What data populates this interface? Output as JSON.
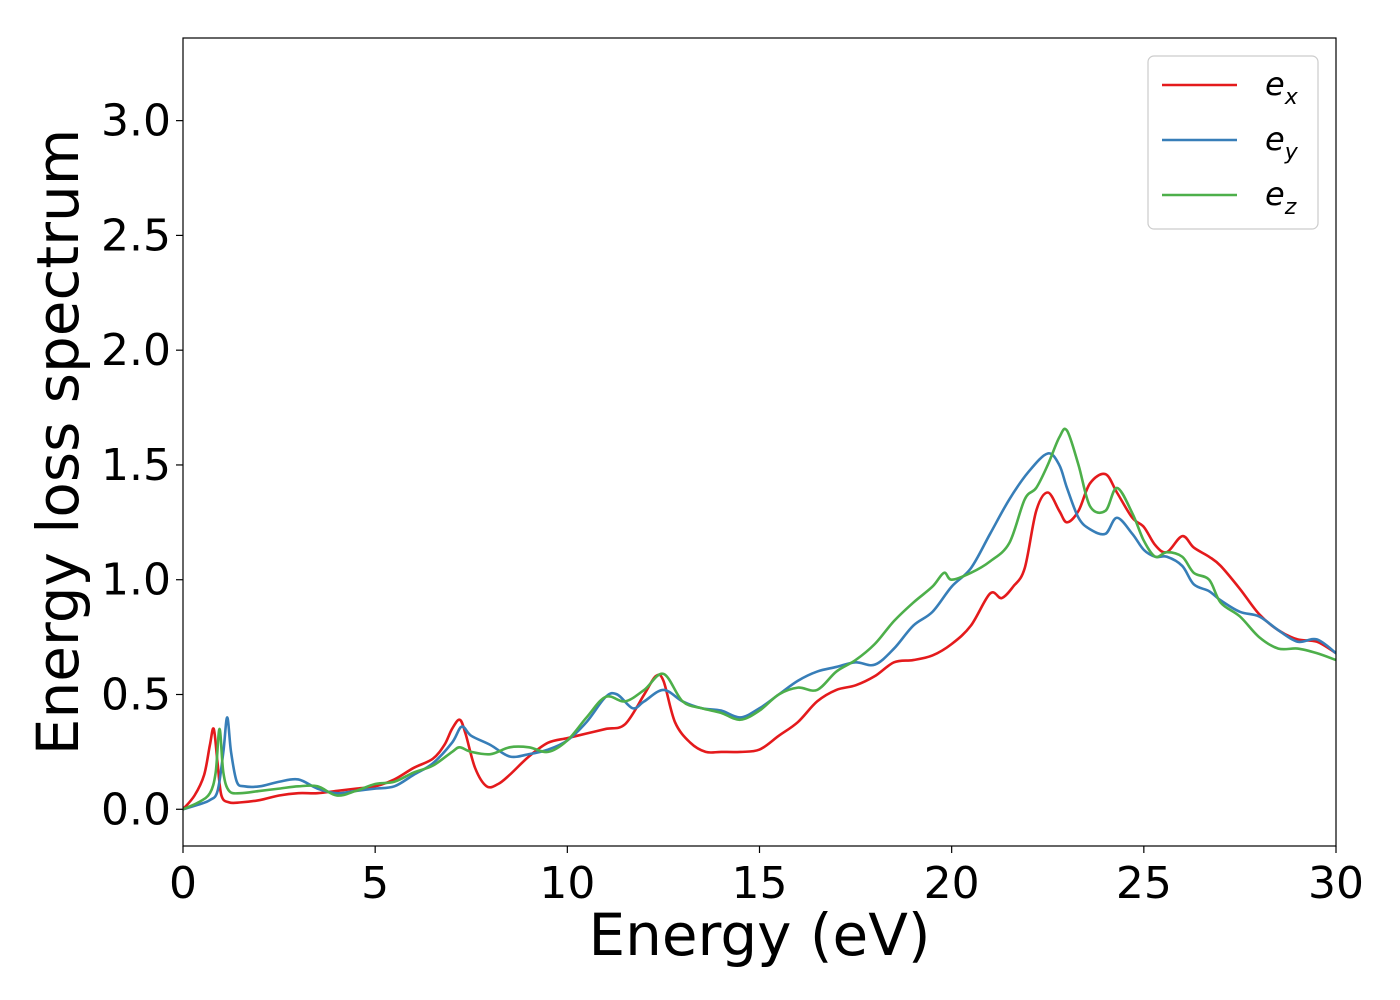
{
  "chart_data": {
    "type": "line",
    "title": "",
    "xlabel": "Energy (eV)",
    "ylabel": "Energy loss spectrum",
    "xlim": [
      0,
      30
    ],
    "ylim": [
      -0.16,
      3.36
    ],
    "xticks": [
      "0",
      "5",
      "10",
      "15",
      "20",
      "25",
      "30"
    ],
    "yticks": [
      "0.0",
      "0.5",
      "1.0",
      "1.5",
      "2.0",
      "2.5",
      "3.0"
    ],
    "grid": false,
    "legend": {
      "position": "top-right"
    },
    "series": [
      {
        "name": "e_x",
        "label_base": "e",
        "label_sub": "x",
        "color": "#e41a1c",
        "x": [
          0.0,
          0.3,
          0.55,
          0.7,
          0.8,
          0.9,
          1.0,
          1.2,
          1.5,
          2.0,
          2.5,
          3.0,
          3.5,
          4.0,
          4.5,
          5.0,
          5.5,
          6.0,
          6.5,
          6.8,
          7.0,
          7.2,
          7.35,
          7.6,
          7.9,
          8.2,
          8.5,
          9.0,
          9.5,
          10.0,
          10.5,
          11.0,
          11.5,
          12.0,
          12.3,
          12.5,
          12.8,
          13.2,
          13.6,
          14.0,
          14.5,
          15.0,
          15.5,
          16.0,
          16.5,
          17.0,
          17.5,
          18.0,
          18.5,
          19.0,
          19.5,
          20.0,
          20.5,
          21.0,
          21.3,
          21.6,
          21.9,
          22.2,
          22.5,
          22.8,
          23.0,
          23.3,
          23.6,
          24.0,
          24.3,
          24.7,
          25.0,
          25.3,
          25.6,
          26.0,
          26.3,
          26.7,
          27.0,
          27.5,
          28.0,
          28.5,
          29.0,
          29.5,
          30.0
        ],
        "y": [
          0.0,
          0.06,
          0.15,
          0.28,
          0.35,
          0.2,
          0.06,
          0.03,
          0.03,
          0.04,
          0.06,
          0.07,
          0.07,
          0.08,
          0.09,
          0.1,
          0.13,
          0.18,
          0.22,
          0.28,
          0.35,
          0.39,
          0.33,
          0.18,
          0.1,
          0.11,
          0.15,
          0.23,
          0.29,
          0.31,
          0.33,
          0.35,
          0.37,
          0.5,
          0.58,
          0.56,
          0.38,
          0.29,
          0.25,
          0.25,
          0.25,
          0.26,
          0.32,
          0.38,
          0.47,
          0.52,
          0.54,
          0.58,
          0.64,
          0.65,
          0.67,
          0.72,
          0.8,
          0.94,
          0.92,
          0.97,
          1.05,
          1.3,
          1.38,
          1.3,
          1.25,
          1.3,
          1.42,
          1.46,
          1.38,
          1.27,
          1.23,
          1.15,
          1.12,
          1.19,
          1.14,
          1.1,
          1.06,
          0.96,
          0.85,
          0.78,
          0.74,
          0.73,
          0.68
        ]
      },
      {
        "name": "e_y",
        "label_base": "e",
        "label_sub": "y",
        "color": "#377eb8",
        "x": [
          0.0,
          0.4,
          0.7,
          0.9,
          1.05,
          1.15,
          1.25,
          1.4,
          1.6,
          2.0,
          2.5,
          3.0,
          3.5,
          4.0,
          4.5,
          5.0,
          5.5,
          6.0,
          6.5,
          7.0,
          7.25,
          7.5,
          8.0,
          8.5,
          9.0,
          9.5,
          10.0,
          10.5,
          11.0,
          11.3,
          11.7,
          12.0,
          12.5,
          13.0,
          13.5,
          14.0,
          14.5,
          15.0,
          15.5,
          16.0,
          16.5,
          17.0,
          17.5,
          18.0,
          18.5,
          19.0,
          19.5,
          20.0,
          20.5,
          21.0,
          21.5,
          22.0,
          22.5,
          22.8,
          23.0,
          23.3,
          23.6,
          24.0,
          24.3,
          24.7,
          25.0,
          25.3,
          25.6,
          26.0,
          26.3,
          26.7,
          27.0,
          27.5,
          28.0,
          28.5,
          29.0,
          29.5,
          30.0
        ],
        "y": [
          0.0,
          0.02,
          0.04,
          0.08,
          0.25,
          0.4,
          0.25,
          0.12,
          0.1,
          0.1,
          0.12,
          0.13,
          0.09,
          0.07,
          0.08,
          0.09,
          0.1,
          0.15,
          0.2,
          0.29,
          0.36,
          0.32,
          0.28,
          0.23,
          0.24,
          0.26,
          0.3,
          0.38,
          0.49,
          0.5,
          0.44,
          0.47,
          0.52,
          0.47,
          0.44,
          0.43,
          0.4,
          0.44,
          0.5,
          0.56,
          0.6,
          0.62,
          0.64,
          0.63,
          0.7,
          0.8,
          0.86,
          0.97,
          1.05,
          1.2,
          1.35,
          1.47,
          1.55,
          1.5,
          1.4,
          1.27,
          1.22,
          1.2,
          1.27,
          1.2,
          1.13,
          1.1,
          1.1,
          1.06,
          0.98,
          0.95,
          0.91,
          0.86,
          0.84,
          0.78,
          0.73,
          0.74,
          0.68
        ]
      },
      {
        "name": "e_z",
        "label_base": "e",
        "label_sub": "z",
        "color": "#4daf4a",
        "x": [
          0.0,
          0.4,
          0.7,
          0.85,
          0.95,
          1.05,
          1.2,
          1.5,
          2.0,
          2.5,
          3.0,
          3.5,
          4.0,
          4.5,
          5.0,
          5.5,
          6.0,
          6.5,
          7.0,
          7.2,
          7.5,
          8.0,
          8.5,
          9.0,
          9.5,
          10.0,
          10.5,
          11.0,
          11.5,
          12.0,
          12.5,
          13.0,
          13.5,
          14.0,
          14.5,
          15.0,
          15.5,
          16.0,
          16.5,
          17.0,
          17.5,
          18.0,
          18.5,
          19.0,
          19.5,
          19.8,
          20.0,
          20.5,
          21.0,
          21.5,
          21.9,
          22.2,
          22.5,
          22.8,
          23.0,
          23.3,
          23.6,
          24.0,
          24.3,
          24.7,
          25.0,
          25.3,
          25.6,
          26.0,
          26.3,
          26.7,
          27.0,
          27.5,
          28.0,
          28.5,
          29.0,
          29.5,
          30.0
        ],
        "y": [
          0.0,
          0.03,
          0.07,
          0.16,
          0.35,
          0.16,
          0.08,
          0.07,
          0.08,
          0.09,
          0.1,
          0.1,
          0.06,
          0.08,
          0.11,
          0.12,
          0.16,
          0.19,
          0.25,
          0.27,
          0.25,
          0.24,
          0.27,
          0.27,
          0.25,
          0.3,
          0.4,
          0.49,
          0.47,
          0.52,
          0.59,
          0.47,
          0.44,
          0.42,
          0.39,
          0.43,
          0.5,
          0.53,
          0.52,
          0.6,
          0.65,
          0.72,
          0.82,
          0.9,
          0.97,
          1.03,
          1.0,
          1.03,
          1.08,
          1.16,
          1.35,
          1.4,
          1.5,
          1.62,
          1.65,
          1.5,
          1.32,
          1.3,
          1.4,
          1.29,
          1.17,
          1.1,
          1.12,
          1.1,
          1.03,
          1.0,
          0.9,
          0.84,
          0.75,
          0.7,
          0.7,
          0.68,
          0.65
        ]
      }
    ]
  }
}
